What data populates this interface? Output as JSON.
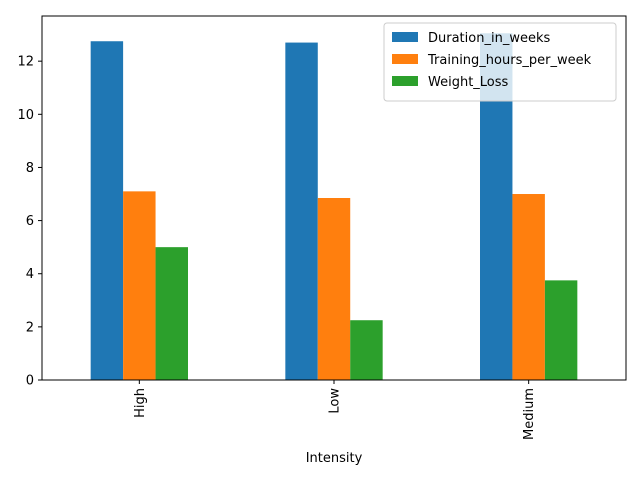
{
  "chart_data": {
    "type": "bar",
    "title": "",
    "xlabel": "Intensity",
    "ylabel": "",
    "categories": [
      "High",
      "Low",
      "Medium"
    ],
    "series": [
      {
        "name": "Duration_in_weeks",
        "values": [
          12.75,
          12.7,
          13.05
        ],
        "color": "#1f77b4"
      },
      {
        "name": "Training_hours_per_week",
        "values": [
          7.1,
          6.85,
          7.0
        ],
        "color": "#ff7f0e"
      },
      {
        "name": "Weight_Loss",
        "values": [
          5.0,
          2.25,
          3.75
        ],
        "color": "#2ca02c"
      }
    ],
    "ylim": [
      0,
      13.7
    ],
    "yticks": [
      0,
      2,
      4,
      6,
      8,
      10,
      12
    ],
    "grid": false,
    "legend": "top-right",
    "xtick_rotation": "vertical"
  }
}
